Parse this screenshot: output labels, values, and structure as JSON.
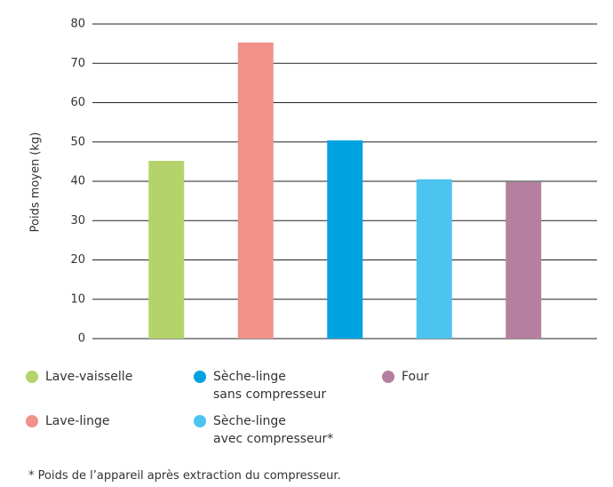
{
  "chart_data": {
    "type": "bar",
    "y_label": "Poids moyen (kg)",
    "categories": [
      "Lave-vaisselle",
      "Lave-linge",
      "Sèche-linge\nsans compresseur",
      "Sèche-linge\navec compresseur*",
      "Four"
    ],
    "values": [
      45.2,
      75.3,
      50.4,
      40.5,
      39.8
    ],
    "colors": [
      "#b5d36b",
      "#f0928a",
      "#00a3e0",
      "#4dc3ef",
      "#b5809f"
    ],
    "ylim": [
      0,
      80
    ],
    "yticks": [
      0,
      10,
      20,
      30,
      40,
      50,
      60,
      70,
      80
    ],
    "grid": true,
    "footnote": "* Poids de l’appareil après extraction du compresseur."
  }
}
